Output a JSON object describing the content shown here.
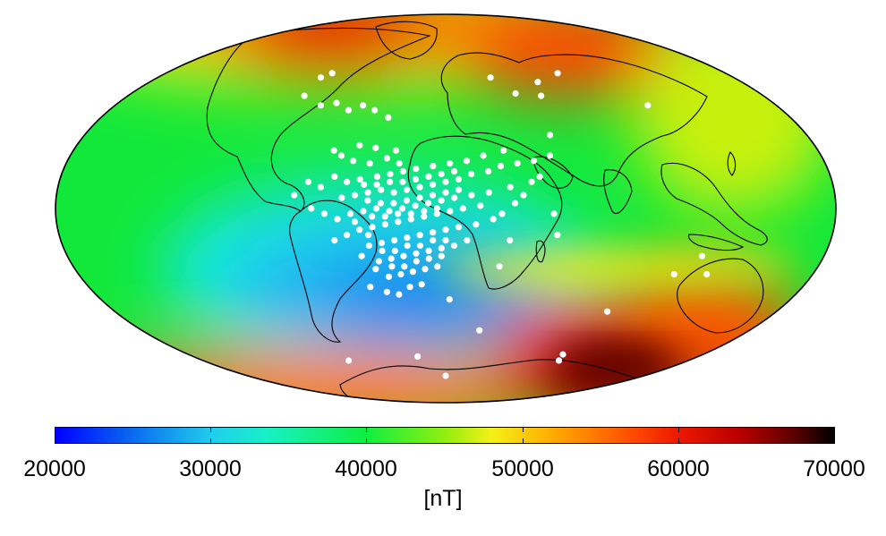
{
  "map": {
    "projection": "Mollweide",
    "quantity": "geomagnetic field intensity",
    "center_lon": 0,
    "value_range": [
      20000,
      70000
    ],
    "point_color": "#ffffff",
    "coastline_color": "#000000",
    "points": [
      [
        -78,
        52
      ],
      [
        -73,
        54
      ],
      [
        -80,
        44
      ],
      [
        -68,
        40
      ],
      [
        -60,
        41
      ],
      [
        -52,
        38
      ],
      [
        -45,
        40
      ],
      [
        -38,
        38
      ],
      [
        -30,
        35
      ],
      [
        -54,
        22
      ],
      [
        -50,
        20
      ],
      [
        -44,
        18
      ],
      [
        -36,
        17
      ],
      [
        -28,
        19
      ],
      [
        -22,
        17
      ],
      [
        -42,
        24
      ],
      [
        -34,
        23
      ],
      [
        -24,
        22
      ],
      [
        -52,
        12
      ],
      [
        -46,
        10
      ],
      [
        -40,
        11
      ],
      [
        -32,
        12
      ],
      [
        -26,
        13
      ],
      [
        -20,
        14
      ],
      [
        -14,
        15
      ],
      [
        -6,
        16
      ],
      [
        2,
        17
      ],
      [
        10,
        18
      ],
      [
        18,
        20
      ],
      [
        28,
        22
      ],
      [
        -48,
        4
      ],
      [
        -42,
        5
      ],
      [
        -36,
        6
      ],
      [
        -30,
        7
      ],
      [
        -24,
        6
      ],
      [
        -18,
        7
      ],
      [
        -12,
        8
      ],
      [
        -6,
        9
      ],
      [
        0,
        10
      ],
      [
        6,
        11
      ],
      [
        12,
        13
      ],
      [
        20,
        14
      ],
      [
        26,
        16
      ],
      [
        34,
        17
      ],
      [
        42,
        18
      ],
      [
        -44,
        -2
      ],
      [
        -38,
        -1
      ],
      [
        -32,
        0
      ],
      [
        -26,
        -1
      ],
      [
        -20,
        0
      ],
      [
        -14,
        1
      ],
      [
        -8,
        2
      ],
      [
        -2,
        3
      ],
      [
        4,
        4
      ],
      [
        12,
        5
      ],
      [
        20,
        6
      ],
      [
        30,
        8
      ],
      [
        -40,
        -8
      ],
      [
        -34,
        -7
      ],
      [
        -28,
        -6
      ],
      [
        -22,
        -5
      ],
      [
        -16,
        -4
      ],
      [
        -10,
        -3
      ],
      [
        -4,
        -2
      ],
      [
        2,
        -1
      ],
      [
        8,
        0
      ],
      [
        16,
        1
      ],
      [
        -36,
        -14
      ],
      [
        -30,
        -13
      ],
      [
        -24,
        -12
      ],
      [
        -18,
        -11
      ],
      [
        -12,
        -10
      ],
      [
        -6,
        -9
      ],
      [
        0,
        -8
      ],
      [
        6,
        -7
      ],
      [
        14,
        -6
      ],
      [
        -32,
        -20
      ],
      [
        -26,
        -19
      ],
      [
        -20,
        -18
      ],
      [
        -14,
        -17
      ],
      [
        -8,
        -16
      ],
      [
        -2,
        -15
      ],
      [
        4,
        -14
      ],
      [
        10,
        -12
      ],
      [
        -28,
        -26
      ],
      [
        -22,
        -25
      ],
      [
        -16,
        -24
      ],
      [
        -10,
        -23
      ],
      [
        -4,
        -22
      ],
      [
        -50,
        -4
      ],
      [
        -56,
        -2
      ],
      [
        -62,
        0
      ],
      [
        -58,
        8
      ],
      [
        -64,
        10
      ],
      [
        -70,
        5
      ],
      [
        -46,
        -10
      ],
      [
        -52,
        -12
      ],
      [
        -38,
        -30
      ],
      [
        -30,
        -32
      ],
      [
        -24,
        -33
      ],
      [
        -18,
        -30
      ],
      [
        -12,
        -29
      ],
      [
        -36,
        3
      ],
      [
        -30,
        2
      ],
      [
        -24,
        2
      ],
      [
        -18,
        3
      ],
      [
        -12,
        4
      ],
      [
        -6,
        5
      ],
      [
        0,
        6
      ],
      [
        6,
        7
      ],
      [
        -34,
        -3
      ],
      [
        -28,
        -3
      ],
      [
        -22,
        -2
      ],
      [
        -16,
        -2
      ],
      [
        -10,
        -1
      ],
      [
        -4,
        0
      ],
      [
        -38,
        9
      ],
      [
        -32,
        9
      ],
      [
        -26,
        10
      ],
      [
        -20,
        10
      ],
      [
        -14,
        11
      ],
      [
        -8,
        12
      ],
      [
        -2,
        13
      ],
      [
        4,
        14
      ],
      [
        -42,
        -5
      ],
      [
        -36,
        -10
      ],
      [
        -30,
        -16
      ],
      [
        -24,
        -16
      ],
      [
        -18,
        -14
      ],
      [
        -12,
        -14
      ],
      [
        -6,
        -12
      ],
      [
        0,
        -12
      ],
      [
        -40,
        -18
      ],
      [
        -34,
        -23
      ],
      [
        -26,
        -22
      ],
      [
        -20,
        -22
      ],
      [
        -14,
        -20
      ],
      [
        -8,
        -19
      ],
      [
        -2,
        -18
      ],
      [
        22,
        -4
      ],
      [
        26,
        -2
      ],
      [
        32,
        2
      ],
      [
        36,
        5
      ],
      [
        40,
        10
      ],
      [
        44,
        12
      ],
      [
        50,
        -2
      ],
      [
        52,
        -10
      ],
      [
        30,
        -12
      ],
      [
        26,
        -22
      ],
      [
        50,
        20
      ],
      [
        52,
        28
      ],
      [
        28,
        52
      ],
      [
        40,
        45
      ],
      [
        54,
        44
      ],
      [
        56,
        50
      ],
      [
        72,
        54
      ],
      [
        110,
        40
      ],
      [
        122,
        -18
      ],
      [
        88,
        -40
      ],
      [
        128,
        -25
      ],
      [
        112,
        -25
      ],
      [
        -72,
        -62
      ],
      [
        -20,
        -60
      ],
      [
        20,
        -48
      ],
      [
        2,
        -35
      ],
      [
        0,
        -70
      ],
      [
        82,
        -59
      ],
      [
        84,
        -62
      ]
    ]
  },
  "colorbar": {
    "min": 20000,
    "max": 70000,
    "ticks": [
      "20000",
      "30000",
      "40000",
      "50000",
      "60000",
      "70000"
    ],
    "unit": "[nT]"
  },
  "colors": {
    "low": "#0000ff",
    "mid_low": "#18f0c8",
    "mid": "#10ee40",
    "mid_high": "#f4f018",
    "high": "#ee1800",
    "max": "#000000"
  }
}
